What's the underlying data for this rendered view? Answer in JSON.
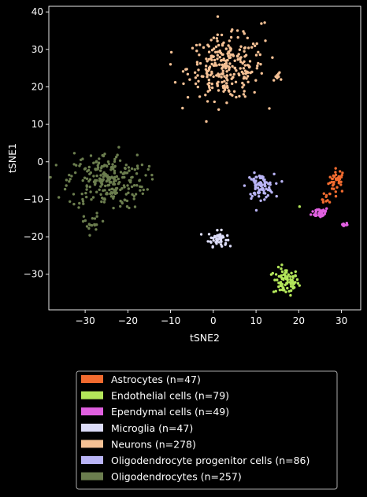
{
  "chart_data": {
    "type": "scatter",
    "title": "",
    "xlabel": "tSNE2",
    "ylabel": "tSNE1",
    "xlim": [
      -38.5,
      34.5
    ],
    "ylim": [
      -39.5,
      41.5
    ],
    "xticks": [
      -30,
      -20,
      -10,
      0,
      10,
      20,
      30
    ],
    "yticks": [
      -30,
      -20,
      -10,
      0,
      10,
      20,
      30,
      40
    ],
    "grid": false,
    "legend_position": "below",
    "series": [
      {
        "name": "Astrocytes (n=47)",
        "color": "#f26b2f",
        "count": 47,
        "clusters": [
          {
            "cx": 29.0,
            "cy": -5.0,
            "sx": 1.0,
            "sy": 1.6
          },
          {
            "cx": 26.5,
            "cy": -10.0,
            "sx": 0.5,
            "sy": 1.0
          }
        ]
      },
      {
        "name": "Endothelial cells (n=79)",
        "color": "#b3e65a",
        "count": 79,
        "clusters": [
          {
            "cx": 17.0,
            "cy": -32.0,
            "sx": 1.5,
            "sy": 1.8
          },
          {
            "cx": 20.0,
            "cy": -11.8,
            "sx": 0.2,
            "sy": 0.2
          }
        ]
      },
      {
        "name": "Ependymal cells (n=49)",
        "color": "#e060e0",
        "count": 49,
        "clusters": [
          {
            "cx": 25.0,
            "cy": -13.5,
            "sx": 1.0,
            "sy": 0.7
          },
          {
            "cx": 30.5,
            "cy": -16.8,
            "sx": 0.5,
            "sy": 0.3
          }
        ]
      },
      {
        "name": "Microglia (n=47)",
        "color": "#dcdcf8",
        "count": 47,
        "clusters": [
          {
            "cx": 1.0,
            "cy": -20.5,
            "sx": 1.1,
            "sy": 1.0
          }
        ]
      },
      {
        "name": "Neurons (n=278)",
        "color": "#f5c195",
        "count": 278,
        "clusters": [
          {
            "cx": 3.0,
            "cy": 25.0,
            "sx": 4.5,
            "sy": 4.2
          },
          {
            "cx": 15.5,
            "cy": 23.0,
            "sx": 0.8,
            "sy": 0.6
          },
          {
            "cx": 11.5,
            "cy": 37.0,
            "sx": 0.4,
            "sy": 0.3
          }
        ]
      },
      {
        "name": "Oligodendrocyte progenitor cells (n=86)",
        "color": "#b9b4f5",
        "count": 86,
        "clusters": [
          {
            "cx": 11.0,
            "cy": -6.5,
            "sx": 1.6,
            "sy": 1.6
          }
        ]
      },
      {
        "name": "Oligodendrocytes (n=257)",
        "color": "#6b7d4e",
        "count": 257,
        "clusters": [
          {
            "cx": -25.0,
            "cy": -5.0,
            "sx": 4.5,
            "sy": 3.8
          },
          {
            "cx": -28.5,
            "cy": -16.5,
            "sx": 0.9,
            "sy": 1.4
          }
        ]
      }
    ]
  }
}
